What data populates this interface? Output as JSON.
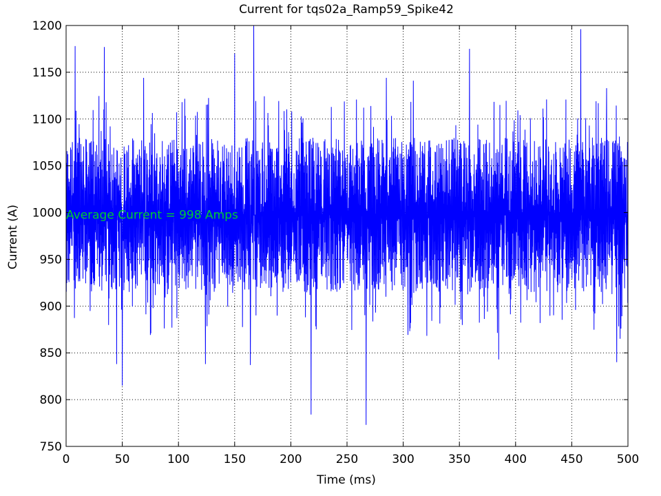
{
  "chart_data": {
    "type": "line",
    "title": "Current for tqs02a_Ramp59_Spike42",
    "xlabel": "Time (ms)",
    "ylabel": "Current (A)",
    "xlim": [
      0,
      500
    ],
    "ylim": [
      750,
      1200
    ],
    "xticks": [
      0,
      50,
      100,
      150,
      200,
      250,
      300,
      350,
      400,
      450,
      500
    ],
    "yticks": [
      750,
      800,
      850,
      900,
      950,
      1000,
      1050,
      1100,
      1150,
      1200
    ],
    "grid": true,
    "grid_style": "dotted",
    "series": [
      {
        "color": "#0000ff",
        "noise_band": {
          "x_start": 0,
          "x_end": 500,
          "dense_low": 915,
          "dense_high": 1080,
          "typical_low": 880,
          "typical_high": 1110,
          "sample_step": 0.2
        },
        "peaks": [
          {
            "x": 8,
            "y": 1178
          },
          {
            "x": 34,
            "y": 1177
          },
          {
            "x": 69,
            "y": 1144
          },
          {
            "x": 150,
            "y": 1170
          },
          {
            "x": 167,
            "y": 1200
          },
          {
            "x": 285,
            "y": 1144
          },
          {
            "x": 309,
            "y": 1141
          },
          {
            "x": 359,
            "y": 1175
          },
          {
            "x": 458,
            "y": 1196
          },
          {
            "x": 481,
            "y": 1133
          }
        ],
        "troughs": [
          {
            "x": 45,
            "y": 838
          },
          {
            "x": 50,
            "y": 815
          },
          {
            "x": 124,
            "y": 838
          },
          {
            "x": 164,
            "y": 837
          },
          {
            "x": 218,
            "y": 784
          },
          {
            "x": 267,
            "y": 773
          },
          {
            "x": 385,
            "y": 843
          },
          {
            "x": 490,
            "y": 840
          }
        ]
      }
    ],
    "annotation": {
      "text": "Average Current = 998 Amps",
      "x": 0,
      "y": 998,
      "color": "#00cc33"
    }
  }
}
